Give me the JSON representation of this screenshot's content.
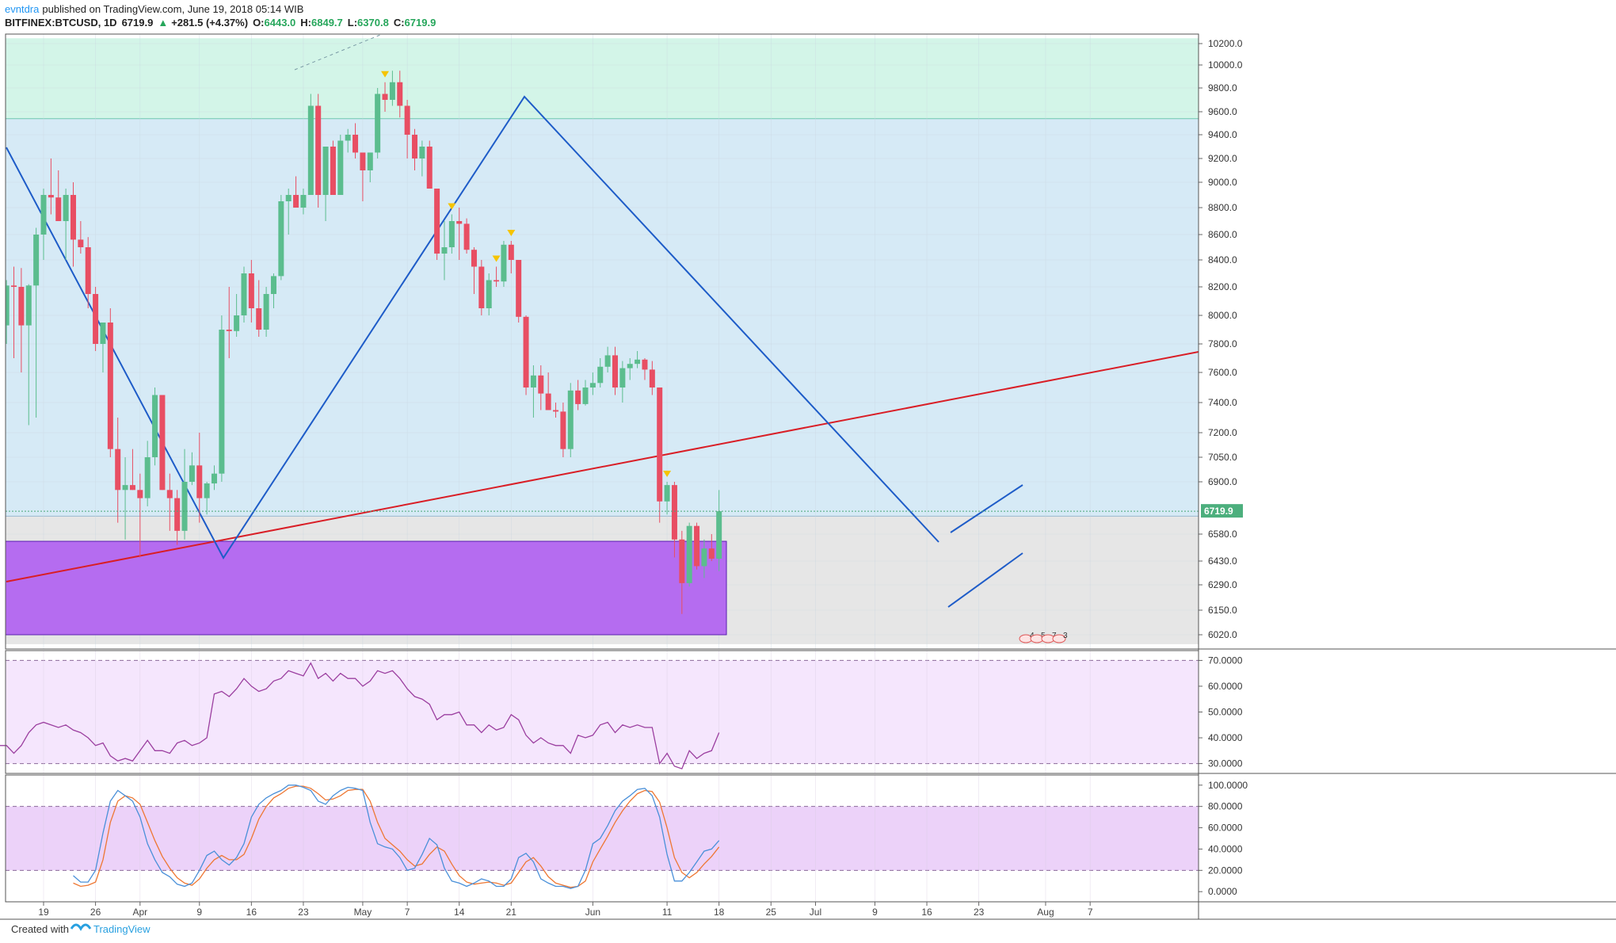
{
  "header": {
    "user": "evntdra",
    "published": "published on TradingView.com, June 19, 2018 05:14 WIB",
    "symbol": "BITFINEX:BTCUSD, 1D",
    "last": "6719.9",
    "change_arrow": "▲",
    "change": "+281.5 (+4.37%)",
    "open_label": "O:",
    "open": "6443.0",
    "high_label": "H:",
    "high": "6849.7",
    "low_label": "L:",
    "low": "6370.8",
    "close_label": "C:",
    "close": "6719.9"
  },
  "footer": {
    "created_with": "Created with",
    "brand": "TradingView"
  },
  "colors": {
    "up": "#5bbd8e",
    "down": "#e84e63",
    "trend_blue": "#1e5cc8",
    "trend_red": "#d91e26",
    "zone_green": "#d3f5e8",
    "zone_blue": "#d6eaf6",
    "zone_gray": "#e6e6e6",
    "zone_purple": "#b56cf0",
    "rsi_bg": "#f5e6fd",
    "rsi_line": "#9b3fa0",
    "stoch_bg": "#ecd2f9",
    "stoch_k": "#4a90d9",
    "stoch_d": "#ee7733",
    "marker": "#f5c400"
  },
  "chart_data": {
    "type": "candlestick",
    "price_axis": {
      "ticks": [
        10200,
        10000,
        9800,
        9600,
        9400,
        9200,
        9000,
        8800,
        8600,
        8400,
        8200,
        8000,
        7800,
        7600,
        7400,
        7200,
        7050,
        6900,
        6580,
        6430,
        6290,
        6150,
        6020
      ],
      "tick_labels": [
        "10200.0",
        "10000.0",
        "9800.0",
        "9600.0",
        "9400.0",
        "9200.0",
        "9000.0",
        "8800.0",
        "8600.0",
        "8400.0",
        "8200.0",
        "8000.0",
        "7800.0",
        "7600.0",
        "7400.0",
        "7200.0",
        "7050.0",
        "6900.0",
        "6580.0",
        "6430.0",
        "6290.0",
        "6150.0",
        "6020.0"
      ],
      "last_price_label": "6719.9",
      "last_price": 6719.9
    },
    "x_axis": {
      "tick_labels": [
        "19",
        "26",
        "Apr",
        "9",
        "16",
        "23",
        "May",
        "7",
        "14",
        "21",
        "Jun",
        "11",
        "18",
        "25",
        "Jul",
        "9",
        "16",
        "23",
        "Aug",
        "7"
      ],
      "tick_dates": [
        "2018-03-19",
        "2018-03-26",
        "2018-04-01",
        "2018-04-09",
        "2018-04-16",
        "2018-04-23",
        "2018-05-01",
        "2018-05-07",
        "2018-05-14",
        "2018-05-21",
        "2018-06-01",
        "2018-06-11",
        "2018-06-18",
        "2018-06-25",
        "2018-07-01",
        "2018-07-09",
        "2018-07-16",
        "2018-07-23",
        "2018-08-01",
        "2018-08-07"
      ]
    },
    "candles": [
      {
        "d": "2018-03-13",
        "o": 8210,
        "h": 8420,
        "l": 7900,
        "c": 7930
      },
      {
        "d": "2018-03-14",
        "o": 7930,
        "h": 8250,
        "l": 7800,
        "c": 8210
      },
      {
        "d": "2018-03-15",
        "o": 8210,
        "h": 8350,
        "l": 7700,
        "c": 8200
      },
      {
        "d": "2018-03-16",
        "o": 8200,
        "h": 8340,
        "l": 7600,
        "c": 7930
      },
      {
        "d": "2018-03-17",
        "o": 7930,
        "h": 8220,
        "l": 7250,
        "c": 8210
      },
      {
        "d": "2018-03-18",
        "o": 8210,
        "h": 8650,
        "l": 7300,
        "c": 8600
      },
      {
        "d": "2018-03-19",
        "o": 8600,
        "h": 8950,
        "l": 8400,
        "c": 8900
      },
      {
        "d": "2018-03-20",
        "o": 8900,
        "h": 9200,
        "l": 8750,
        "c": 8880
      },
      {
        "d": "2018-03-21",
        "o": 8880,
        "h": 9100,
        "l": 8700,
        "c": 8700
      },
      {
        "d": "2018-03-22",
        "o": 8700,
        "h": 8950,
        "l": 8400,
        "c": 8900
      },
      {
        "d": "2018-03-23",
        "o": 8900,
        "h": 9000,
        "l": 8350,
        "c": 8560
      },
      {
        "d": "2018-03-24",
        "o": 8560,
        "h": 8700,
        "l": 8450,
        "c": 8500
      },
      {
        "d": "2018-03-25",
        "o": 8500,
        "h": 8580,
        "l": 8050,
        "c": 8150
      },
      {
        "d": "2018-03-26",
        "o": 8150,
        "h": 8200,
        "l": 7750,
        "c": 7800
      },
      {
        "d": "2018-03-27",
        "o": 7800,
        "h": 7950,
        "l": 7600,
        "c": 7950
      },
      {
        "d": "2018-03-28",
        "o": 7950,
        "h": 8050,
        "l": 7050,
        "c": 7100
      },
      {
        "d": "2018-03-29",
        "o": 7100,
        "h": 7300,
        "l": 6650,
        "c": 6850
      },
      {
        "d": "2018-03-30",
        "o": 6850,
        "h": 7050,
        "l": 6550,
        "c": 6880
      },
      {
        "d": "2018-03-31",
        "o": 6880,
        "h": 7100,
        "l": 6850,
        "c": 6850
      },
      {
        "d": "2018-04-01",
        "o": 6850,
        "h": 6950,
        "l": 6450,
        "c": 6800
      },
      {
        "d": "2018-04-02",
        "o": 6800,
        "h": 7150,
        "l": 6750,
        "c": 7050
      },
      {
        "d": "2018-04-03",
        "o": 7050,
        "h": 7500,
        "l": 7000,
        "c": 7450
      },
      {
        "d": "2018-04-04",
        "o": 7450,
        "h": 7450,
        "l": 6850,
        "c": 6850
      },
      {
        "d": "2018-04-05",
        "o": 6850,
        "h": 6950,
        "l": 6600,
        "c": 6800
      },
      {
        "d": "2018-04-06",
        "o": 6800,
        "h": 6850,
        "l": 6520,
        "c": 6600
      },
      {
        "d": "2018-04-07",
        "o": 6600,
        "h": 7100,
        "l": 6550,
        "c": 6900
      },
      {
        "d": "2018-04-08",
        "o": 6900,
        "h": 7080,
        "l": 6880,
        "c": 7000
      },
      {
        "d": "2018-04-09",
        "o": 7000,
        "h": 7200,
        "l": 6650,
        "c": 6800
      },
      {
        "d": "2018-04-10",
        "o": 6800,
        "h": 6900,
        "l": 6700,
        "c": 6890
      },
      {
        "d": "2018-04-11",
        "o": 6890,
        "h": 7000,
        "l": 6850,
        "c": 6950
      },
      {
        "d": "2018-04-12",
        "o": 6950,
        "h": 8000,
        "l": 6900,
        "c": 7900
      },
      {
        "d": "2018-04-13",
        "o": 7900,
        "h": 8200,
        "l": 7700,
        "c": 7890
      },
      {
        "d": "2018-04-14",
        "o": 7890,
        "h": 8150,
        "l": 7850,
        "c": 8000
      },
      {
        "d": "2018-04-15",
        "o": 8000,
        "h": 8350,
        "l": 7950,
        "c": 8300
      },
      {
        "d": "2018-04-16",
        "o": 8300,
        "h": 8400,
        "l": 7950,
        "c": 8050
      },
      {
        "d": "2018-04-17",
        "o": 8050,
        "h": 8250,
        "l": 7850,
        "c": 7900
      },
      {
        "d": "2018-04-18",
        "o": 7900,
        "h": 8200,
        "l": 7850,
        "c": 8150
      },
      {
        "d": "2018-04-19",
        "o": 8150,
        "h": 8300,
        "l": 8050,
        "c": 8280
      },
      {
        "d": "2018-04-20",
        "o": 8280,
        "h": 8900,
        "l": 8250,
        "c": 8850
      },
      {
        "d": "2018-04-21",
        "o": 8850,
        "h": 8950,
        "l": 8600,
        "c": 8900
      },
      {
        "d": "2018-04-22",
        "o": 8900,
        "h": 9050,
        "l": 8800,
        "c": 8800
      },
      {
        "d": "2018-04-23",
        "o": 8800,
        "h": 8950,
        "l": 8750,
        "c": 8900
      },
      {
        "d": "2018-04-24",
        "o": 8900,
        "h": 9750,
        "l": 8900,
        "c": 9650
      },
      {
        "d": "2018-04-25",
        "o": 9650,
        "h": 9750,
        "l": 8800,
        "c": 8900
      },
      {
        "d": "2018-04-26",
        "o": 8900,
        "h": 9300,
        "l": 8700,
        "c": 9300
      },
      {
        "d": "2018-04-27",
        "o": 9300,
        "h": 9350,
        "l": 8900,
        "c": 8900
      },
      {
        "d": "2018-04-28",
        "o": 8900,
        "h": 9400,
        "l": 8900,
        "c": 9350
      },
      {
        "d": "2018-04-29",
        "o": 9350,
        "h": 9450,
        "l": 9250,
        "c": 9400
      },
      {
        "d": "2018-04-30",
        "o": 9400,
        "h": 9500,
        "l": 9200,
        "c": 9250
      },
      {
        "d": "2018-05-01",
        "o": 9250,
        "h": 9250,
        "l": 8850,
        "c": 9100
      },
      {
        "d": "2018-05-02",
        "o": 9100,
        "h": 9250,
        "l": 9000,
        "c": 9250
      },
      {
        "d": "2018-05-03",
        "o": 9250,
        "h": 9800,
        "l": 9200,
        "c": 9750
      },
      {
        "d": "2018-05-04",
        "o": 9750,
        "h": 9850,
        "l": 9600,
        "c": 9700
      },
      {
        "d": "2018-05-05",
        "o": 9700,
        "h": 9950,
        "l": 9650,
        "c": 9850
      },
      {
        "d": "2018-05-06",
        "o": 9850,
        "h": 9950,
        "l": 9550,
        "c": 9650
      },
      {
        "d": "2018-05-07",
        "o": 9650,
        "h": 9700,
        "l": 9200,
        "c": 9400
      },
      {
        "d": "2018-05-08",
        "o": 9400,
        "h": 9450,
        "l": 9100,
        "c": 9200
      },
      {
        "d": "2018-05-09",
        "o": 9200,
        "h": 9350,
        "l": 9050,
        "c": 9300
      },
      {
        "d": "2018-05-10",
        "o": 9300,
        "h": 9350,
        "l": 8950,
        "c": 8950
      },
      {
        "d": "2018-05-11",
        "o": 8950,
        "h": 8950,
        "l": 8400,
        "c": 8450
      },
      {
        "d": "2018-05-12",
        "o": 8450,
        "h": 8700,
        "l": 8250,
        "c": 8500
      },
      {
        "d": "2018-05-13",
        "o": 8500,
        "h": 8750,
        "l": 8450,
        "c": 8700
      },
      {
        "d": "2018-05-14",
        "o": 8700,
        "h": 8800,
        "l": 8400,
        "c": 8680
      },
      {
        "d": "2018-05-15",
        "o": 8680,
        "h": 8720,
        "l": 8450,
        "c": 8480
      },
      {
        "d": "2018-05-16",
        "o": 8480,
        "h": 8500,
        "l": 8150,
        "c": 8350
      },
      {
        "d": "2018-05-17",
        "o": 8350,
        "h": 8400,
        "l": 8000,
        "c": 8050
      },
      {
        "d": "2018-05-18",
        "o": 8050,
        "h": 8300,
        "l": 8000,
        "c": 8250
      },
      {
        "d": "2018-05-19",
        "o": 8250,
        "h": 8350,
        "l": 8200,
        "c": 8240
      },
      {
        "d": "2018-05-20",
        "o": 8240,
        "h": 8550,
        "l": 8200,
        "c": 8520
      },
      {
        "d": "2018-05-21",
        "o": 8520,
        "h": 8550,
        "l": 8300,
        "c": 8400
      },
      {
        "d": "2018-05-22",
        "o": 8400,
        "h": 8400,
        "l": 7950,
        "c": 7990
      },
      {
        "d": "2018-05-23",
        "o": 7990,
        "h": 8000,
        "l": 7450,
        "c": 7500
      },
      {
        "d": "2018-05-24",
        "o": 7500,
        "h": 7650,
        "l": 7300,
        "c": 7580
      },
      {
        "d": "2018-05-25",
        "o": 7580,
        "h": 7650,
        "l": 7350,
        "c": 7460
      },
      {
        "d": "2018-05-26",
        "o": 7460,
        "h": 7600,
        "l": 7350,
        "c": 7350
      },
      {
        "d": "2018-05-27",
        "o": 7350,
        "h": 7400,
        "l": 7300,
        "c": 7340
      },
      {
        "d": "2018-05-28",
        "o": 7340,
        "h": 7400,
        "l": 7050,
        "c": 7100
      },
      {
        "d": "2018-05-29",
        "o": 7100,
        "h": 7530,
        "l": 7050,
        "c": 7480
      },
      {
        "d": "2018-05-30",
        "o": 7480,
        "h": 7550,
        "l": 7350,
        "c": 7390
      },
      {
        "d": "2018-05-31",
        "o": 7390,
        "h": 7550,
        "l": 7380,
        "c": 7500
      },
      {
        "d": "2018-06-01",
        "o": 7500,
        "h": 7600,
        "l": 7450,
        "c": 7530
      },
      {
        "d": "2018-06-02",
        "o": 7530,
        "h": 7700,
        "l": 7500,
        "c": 7640
      },
      {
        "d": "2018-06-03",
        "o": 7640,
        "h": 7780,
        "l": 7600,
        "c": 7720
      },
      {
        "d": "2018-06-04",
        "o": 7720,
        "h": 7780,
        "l": 7450,
        "c": 7500
      },
      {
        "d": "2018-06-05",
        "o": 7500,
        "h": 7680,
        "l": 7400,
        "c": 7630
      },
      {
        "d": "2018-06-06",
        "o": 7630,
        "h": 7700,
        "l": 7550,
        "c": 7660
      },
      {
        "d": "2018-06-07",
        "o": 7660,
        "h": 7750,
        "l": 7630,
        "c": 7690
      },
      {
        "d": "2018-06-08",
        "o": 7690,
        "h": 7700,
        "l": 7550,
        "c": 7620
      },
      {
        "d": "2018-06-09",
        "o": 7620,
        "h": 7680,
        "l": 7450,
        "c": 7500
      },
      {
        "d": "2018-06-10",
        "o": 7500,
        "h": 7500,
        "l": 6650,
        "c": 6780
      },
      {
        "d": "2018-06-11",
        "o": 6780,
        "h": 6900,
        "l": 6700,
        "c": 6880
      },
      {
        "d": "2018-06-12",
        "o": 6880,
        "h": 6900,
        "l": 6450,
        "c": 6550
      },
      {
        "d": "2018-06-13",
        "o": 6550,
        "h": 6600,
        "l": 6130,
        "c": 6300
      },
      {
        "d": "2018-06-14",
        "o": 6300,
        "h": 6650,
        "l": 6280,
        "c": 6630
      },
      {
        "d": "2018-06-15",
        "o": 6630,
        "h": 6650,
        "l": 6380,
        "c": 6400
      },
      {
        "d": "2018-06-16",
        "o": 6400,
        "h": 6550,
        "l": 6330,
        "c": 6500
      },
      {
        "d": "2018-06-17",
        "o": 6500,
        "h": 6580,
        "l": 6430,
        "c": 6443
      },
      {
        "d": "2018-06-18",
        "o": 6443,
        "h": 6849.7,
        "l": 6370.8,
        "c": 6719.9
      }
    ],
    "zones": [
      {
        "name": "green",
        "from": 9540,
        "to": 10300
      },
      {
        "name": "blue",
        "from": 6690,
        "to": 9540
      },
      {
        "name": "gray",
        "from": 5970,
        "to": 6690
      },
      {
        "name": "purple",
        "from": 6020,
        "to": 6540,
        "end_date": "2018-06-19"
      }
    ],
    "pattern_labels": [
      "4",
      "5",
      "7",
      "3"
    ],
    "rsi": {
      "ticks": [
        70,
        60,
        50,
        40,
        30
      ],
      "tick_labels": [
        "70.0000",
        "60.0000",
        "50.0000",
        "40.0000",
        "30.0000"
      ],
      "upper": 70,
      "lower": 30,
      "values": [
        37,
        37,
        34,
        37,
        42,
        45,
        46,
        45,
        44,
        45,
        43,
        42,
        40,
        37,
        38,
        33,
        31,
        32,
        31,
        35,
        39,
        35,
        35,
        34,
        38,
        39,
        37,
        38,
        40,
        57,
        58,
        56,
        59,
        63,
        60,
        58,
        59,
        62,
        63,
        66,
        65,
        64,
        69,
        63,
        65,
        62,
        65,
        63,
        63,
        60,
        62,
        66,
        65,
        66,
        63,
        59,
        56,
        55,
        53,
        47,
        49,
        49,
        50,
        45,
        45,
        42,
        45,
        43,
        44,
        49,
        47,
        41,
        38,
        40,
        38,
        37,
        37,
        34,
        41,
        40,
        41,
        45,
        46,
        42,
        45,
        44,
        45,
        44,
        44,
        30,
        34,
        29,
        28,
        35,
        32,
        34,
        35,
        42
      ]
    },
    "stoch": {
      "ticks": [
        100,
        80,
        60,
        40,
        20,
        0
      ],
      "tick_labels": [
        "100.0000",
        "80.0000",
        "60.0000",
        "40.0000",
        "20.0000",
        "0.0000"
      ],
      "upper": 80,
      "lower": 20,
      "k": [
        15,
        9,
        9,
        20,
        55,
        85,
        95,
        90,
        85,
        70,
        45,
        30,
        18,
        14,
        7,
        5,
        8,
        20,
        34,
        38,
        30,
        25,
        32,
        45,
        70,
        82,
        88,
        92,
        95,
        100,
        100,
        98,
        95,
        85,
        82,
        90,
        95,
        98,
        97,
        95,
        65,
        45,
        42,
        40,
        32,
        20,
        22,
        35,
        50,
        44,
        22,
        10,
        8,
        5,
        8,
        12,
        10,
        5,
        5,
        12,
        32,
        36,
        28,
        12,
        8,
        5,
        5,
        3,
        5,
        20,
        45,
        50,
        62,
        76,
        85,
        90,
        96,
        97,
        90,
        70,
        35,
        10,
        10,
        18,
        28,
        38,
        40,
        48
      ],
      "d": [
        8,
        5,
        6,
        9,
        30,
        65,
        85,
        90,
        88,
        82,
        65,
        48,
        33,
        22,
        13,
        8,
        6,
        12,
        22,
        30,
        34,
        30,
        30,
        35,
        50,
        68,
        80,
        88,
        92,
        97,
        99,
        99,
        97,
        92,
        86,
        87,
        90,
        95,
        96,
        96,
        85,
        65,
        50,
        44,
        38,
        30,
        24,
        26,
        35,
        42,
        38,
        26,
        15,
        9,
        7,
        8,
        9,
        8,
        6,
        8,
        18,
        28,
        32,
        24,
        14,
        8,
        6,
        4,
        5,
        10,
        28,
        40,
        52,
        65,
        76,
        85,
        92,
        95,
        94,
        84,
        60,
        32,
        18,
        13,
        18,
        26,
        33,
        42
      ]
    }
  }
}
